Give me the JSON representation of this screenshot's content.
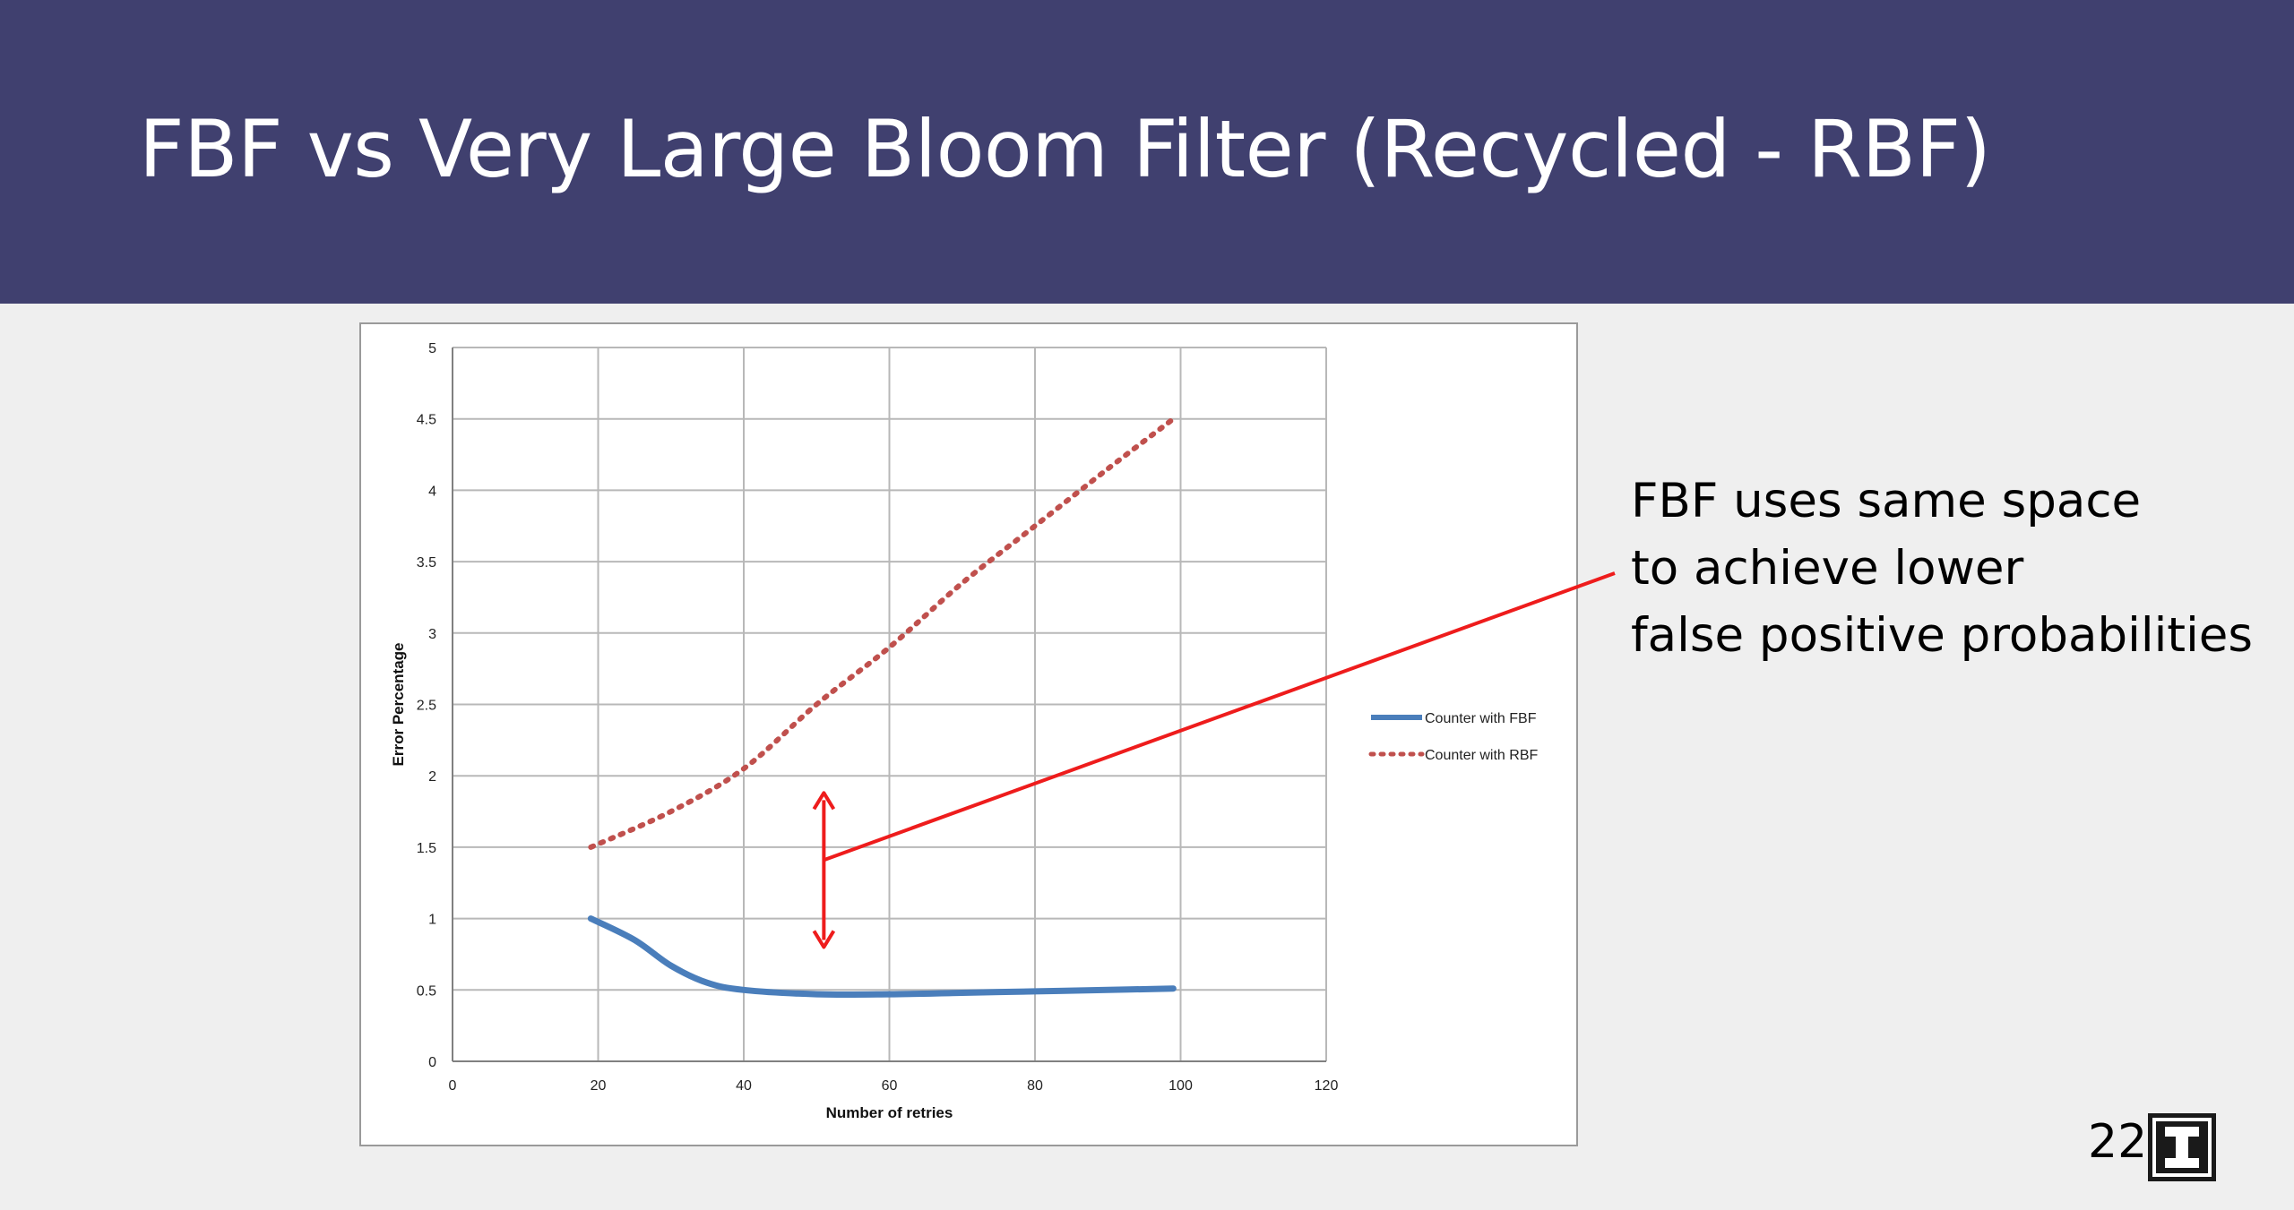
{
  "slide": {
    "title": "FBF vs Very Large Bloom Filter (Recycled - RBF)",
    "note_lines": [
      "FBF uses same space",
      "to achieve lower",
      "false positive probabilities"
    ],
    "page_number": "22",
    "logo": "block-i-logo",
    "colors": {
      "header_bg": "#40406f",
      "annotation": "#ee1c1c",
      "fbf_series": "#4a7ebb",
      "rbf_series": "#c0504d"
    }
  },
  "chart_data": {
    "type": "line",
    "title": "",
    "xlabel": "Number of retries",
    "ylabel": "Error Percentage",
    "xlim": [
      0,
      120
    ],
    "ylim": [
      0,
      5
    ],
    "xticks": [
      "0",
      "20",
      "40",
      "60",
      "80",
      "100",
      "120"
    ],
    "yticks": [
      "0",
      "0.5",
      "1",
      "1.5",
      "2",
      "2.5",
      "3",
      "3.5",
      "4",
      "4.5",
      "5"
    ],
    "grid": true,
    "legend_position": "right",
    "series": [
      {
        "name": "Counter with FBF",
        "style": "solid",
        "color": "#4a7ebb",
        "x": [
          19,
          25,
          30,
          35,
          40,
          50,
          60,
          70,
          80,
          90,
          99
        ],
        "y": [
          1.0,
          0.85,
          0.67,
          0.55,
          0.5,
          0.47,
          0.47,
          0.48,
          0.49,
          0.5,
          0.51
        ]
      },
      {
        "name": "Counter with RBF",
        "style": "dotted",
        "color": "#c0504d",
        "x": [
          19,
          30,
          40,
          50,
          60,
          70,
          80,
          90,
          99
        ],
        "y": [
          1.5,
          1.75,
          2.05,
          2.5,
          2.9,
          3.35,
          3.75,
          4.15,
          4.5
        ]
      }
    ],
    "annotation": {
      "type": "double-arrow",
      "x": 51,
      "y_from": 0.8,
      "y_to": 1.88,
      "connector_to": "note"
    }
  }
}
